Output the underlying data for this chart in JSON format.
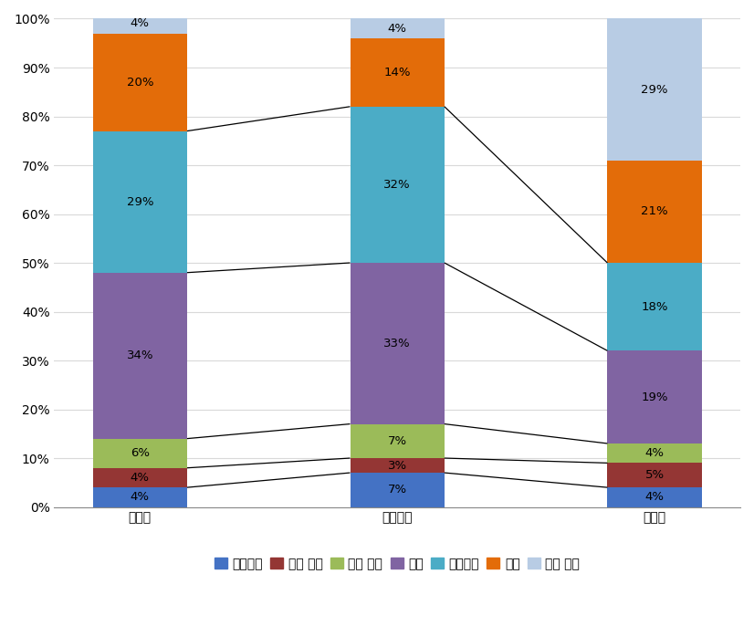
{
  "categories": [
    "운전자",
    "비운전자",
    "전문가"
  ],
  "series": [
    {
      "label": "전혀없음",
      "color": "#4472C4",
      "values": [
        4,
        7,
        4
      ]
    },
    {
      "label": "매우 없음",
      "color": "#943634",
      "values": [
        4,
        3,
        5
      ]
    },
    {
      "label": "약간 없음",
      "color": "#9BBB59",
      "values": [
        6,
        7,
        4
      ]
    },
    {
      "label": "보통",
      "color": "#8064A2",
      "values": [
        34,
        33,
        19
      ]
    },
    {
      "label": "약간많음",
      "color": "#4BACC6",
      "values": [
        29,
        32,
        18
      ]
    },
    {
      "label": "많음",
      "color": "#E36C09",
      "values": [
        20,
        14,
        21
      ]
    },
    {
      "label": "매우 많음",
      "color": "#B8CCE4",
      "values": [
        4,
        4,
        29
      ]
    }
  ],
  "ylim": [
    0,
    100
  ],
  "yticks": [
    0,
    10,
    20,
    30,
    40,
    50,
    60,
    70,
    80,
    90,
    100
  ],
  "grid_color": "#D9D9D9",
  "background_color": "#FFFFFF",
  "bar_width": 0.55,
  "x_positions": [
    0.5,
    2.0,
    3.5
  ],
  "xlim": [
    0.0,
    4.0
  ],
  "line_series_indices": [
    0,
    1,
    2,
    3,
    4
  ],
  "line_color": "black",
  "line_lw": 0.9,
  "text_fontsize": 9.5,
  "tick_fontsize": 10,
  "legend_fontsize": 10
}
